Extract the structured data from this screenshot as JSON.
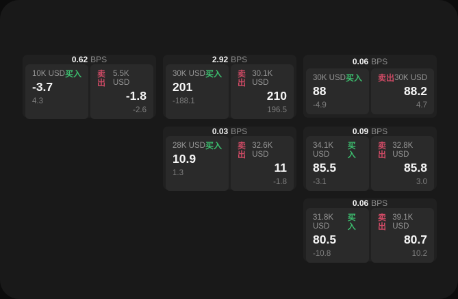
{
  "labels": {
    "buy": "买入",
    "sell": "卖出",
    "bps_suffix": "BPS"
  },
  "colors": {
    "buy_green": "#3cbd6e",
    "sell_red": "#d14b66",
    "card_bg": "#202020",
    "panel_bg": "#2a2a2a",
    "surface_bg": "#191919"
  },
  "cards": [
    {
      "bps": "0.62",
      "buy": {
        "size": "10K USD",
        "price": "-3.7",
        "sub": "4.3"
      },
      "sell": {
        "size": "5.5K USD",
        "price": "-1.8",
        "sub": "-2.6"
      }
    },
    {
      "bps": "2.92",
      "buy": {
        "size": "30K USD",
        "price": "201",
        "sub": "-188.1"
      },
      "sell": {
        "size": "30.1K USD",
        "price": "210",
        "sub": "196.5"
      }
    },
    {
      "bps": "0.06",
      "buy": {
        "size": "30K USD",
        "price": "88",
        "sub": "-4.9"
      },
      "sell": {
        "size": "30K USD",
        "price": "88.2",
        "sub": "4.7"
      }
    },
    {
      "bps": "0.03",
      "buy": {
        "size": "28K USD",
        "price": "10.9",
        "sub": "1.3"
      },
      "sell": {
        "size": "32.6K USD",
        "price": "11",
        "sub": "-1.8"
      }
    },
    {
      "bps": "0.09",
      "buy": {
        "size": "34.1K USD",
        "price": "85.5",
        "sub": "-3.1"
      },
      "sell": {
        "size": "32.8K USD",
        "price": "85.8",
        "sub": "3.0"
      }
    },
    {
      "bps": "0.06",
      "buy": {
        "size": "31.8K USD",
        "price": "80.5",
        "sub": "-10.8"
      },
      "sell": {
        "size": "39.1K USD",
        "price": "80.7",
        "sub": "10.2"
      }
    }
  ]
}
